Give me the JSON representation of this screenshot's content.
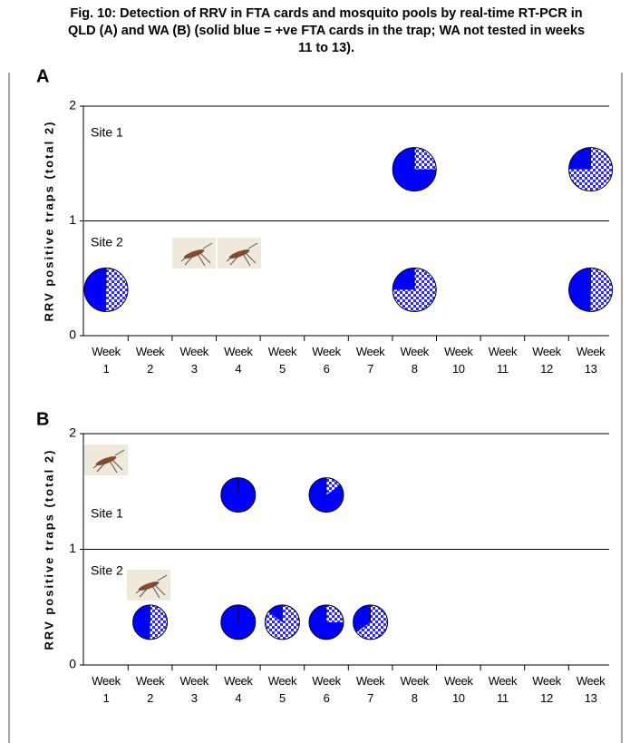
{
  "chart_data": [
    {
      "type": "pie-grid",
      "title": "Fig. 10: Detection of RRV in FTA cards and mosquito pools by real-time RT-PCR in QLD (A) and WA (B) (solid blue = +ve FTA cards in the trap; WA not tested in weeks 11 to 13).",
      "panel": "A",
      "ylabel": "RRV positive traps (total 2)",
      "ylim": [
        0,
        2
      ],
      "yticks": [
        0,
        1,
        2
      ],
      "grid": true,
      "categories": [
        "Week 1",
        "Week 2",
        "Week 3",
        "Week 4",
        "Week 5",
        "Week 6",
        "Week 7",
        "Week 8",
        "Week 10",
        "Week 11",
        "Week 12",
        "Week 13"
      ],
      "sites": [
        "Site 1",
        "Site 2"
      ],
      "solid_color": "#0000ff",
      "pies": [
        {
          "x": "Week 8",
          "site": "Site 1",
          "solid": 75
        },
        {
          "x": "Week 13",
          "site": "Site 1",
          "solid": 25
        },
        {
          "x": "Week 1",
          "site": "Site 2",
          "solid": 50
        },
        {
          "x": "Week 8",
          "site": "Site 2",
          "solid": 25
        },
        {
          "x": "Week 13",
          "site": "Site 2",
          "solid": 50
        }
      ]
    },
    {
      "type": "pie-grid",
      "panel": "B",
      "ylabel": "RRV positive traps (total 2)",
      "ylim": [
        0,
        2
      ],
      "yticks": [
        0,
        1,
        2
      ],
      "grid": true,
      "categories": [
        "Week 1",
        "Week 2",
        "Week 3",
        "Week 4",
        "Week 5",
        "Week 6",
        "Week 7",
        "Week 8",
        "Week 10",
        "Week 11",
        "Week 12",
        "Week 13"
      ],
      "sites": [
        "Site 1",
        "Site 2"
      ],
      "solid_color": "#0000ff",
      "pies": [
        {
          "x": "Week 4",
          "site": "Site 1",
          "solid": 100
        },
        {
          "x": "Week 6",
          "site": "Site 1",
          "solid": 85
        },
        {
          "x": "Week 2",
          "site": "Site 2",
          "solid": 50
        },
        {
          "x": "Week 4",
          "site": "Site 2",
          "solid": 100
        },
        {
          "x": "Week 5",
          "site": "Site 2",
          "solid": 15
        },
        {
          "x": "Week 6",
          "site": "Site 2",
          "solid": 75
        },
        {
          "x": "Week 7",
          "site": "Site 2",
          "solid": 35
        }
      ]
    }
  ]
}
